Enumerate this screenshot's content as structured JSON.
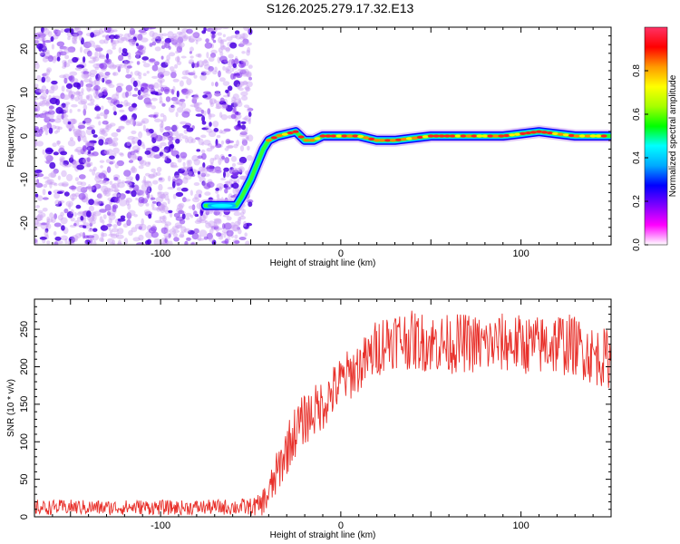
{
  "title": "S126.2025.279.17.32.E13",
  "chart_data": [
    {
      "type": "heatmap",
      "name": "spectrogram",
      "xlabel": "Height of straight line (km)",
      "ylabel": "Frequency (Hz)",
      "xlim": [
        -170,
        150
      ],
      "ylim": [
        -25,
        25
      ],
      "xticks": [
        -100,
        0,
        100
      ],
      "xtick_labels": [
        "-100",
        "0",
        "100"
      ],
      "yticks": [
        -20,
        -10,
        0,
        10,
        20
      ],
      "ytick_labels": [
        "-20",
        "-10",
        "0",
        "10",
        "20"
      ],
      "noise_region_x": [
        -170,
        -50
      ],
      "noise_freq_range": [
        -25,
        25
      ],
      "signal_track": {
        "x": [
          -75,
          -58,
          -55,
          -50,
          -47,
          -45,
          -43,
          -40,
          -35,
          -30,
          -25,
          -20,
          -15,
          -10,
          0,
          10,
          20,
          30,
          40,
          50,
          60,
          70,
          80,
          90,
          100,
          110,
          120,
          130,
          140,
          150
        ],
        "y": [
          -16,
          -16,
          -14,
          -10,
          -7,
          -5,
          -3,
          -1,
          0,
          0.5,
          1,
          -1,
          -1,
          0,
          0,
          0,
          -1,
          -1,
          -0.5,
          0,
          0,
          0,
          0,
          0,
          0.5,
          1,
          0.5,
          0,
          0,
          0
        ]
      },
      "colorbar": {
        "label": "Normalized spectral amplitude",
        "range": [
          0,
          1
        ],
        "ticks": [
          0.0,
          0.2,
          0.4,
          0.6,
          0.8
        ],
        "tick_labels": [
          "0.0",
          "0.2",
          "0.4",
          "0.6",
          "0.8"
        ],
        "colors": [
          "#ffffff",
          "#ff00ff",
          "#7d00ff",
          "#0000ff",
          "#00aaff",
          "#00ffff",
          "#00ff00",
          "#a6ff00",
          "#ffff00",
          "#ff9900",
          "#ff0000",
          "#ff3366"
        ]
      }
    },
    {
      "type": "line",
      "name": "snr",
      "xlabel": "Height of straight line (km)",
      "ylabel": "SNR (10 * v/v)",
      "xlim": [
        -170,
        150
      ],
      "ylim": [
        0,
        290
      ],
      "xticks": [
        -100,
        0,
        100
      ],
      "xtick_labels": [
        "-100",
        "0",
        "100"
      ],
      "yticks": [
        0,
        50,
        100,
        150,
        200,
        250
      ],
      "ytick_labels": [
        "0",
        "50",
        "100",
        "150",
        "200",
        "250"
      ],
      "line_color": "#e8302a",
      "series": [
        {
          "name": "SNR",
          "x": [
            -170,
            -150,
            -130,
            -110,
            -90,
            -70,
            -50,
            -45,
            -40,
            -35,
            -30,
            -25,
            -20,
            -15,
            -10,
            -5,
            0,
            5,
            10,
            15,
            20,
            25,
            30,
            40,
            50,
            60,
            70,
            80,
            90,
            100,
            110,
            120,
            130,
            140,
            150
          ],
          "y": [
            12,
            13,
            12,
            13,
            12,
            13,
            13,
            15,
            30,
            60,
            90,
            115,
            130,
            140,
            150,
            165,
            180,
            190,
            200,
            210,
            225,
            235,
            238,
            235,
            232,
            230,
            232,
            228,
            232,
            230,
            228,
            232,
            228,
            215,
            210
          ],
          "noise_amp": [
            10,
            10,
            10,
            10,
            10,
            10,
            12,
            15,
            25,
            30,
            35,
            35,
            35,
            35,
            35,
            35,
            35,
            35,
            35,
            35,
            40,
            40,
            40,
            40,
            40,
            40,
            40,
            40,
            40,
            40,
            40,
            45,
            40,
            40,
            40
          ]
        }
      ]
    }
  ]
}
